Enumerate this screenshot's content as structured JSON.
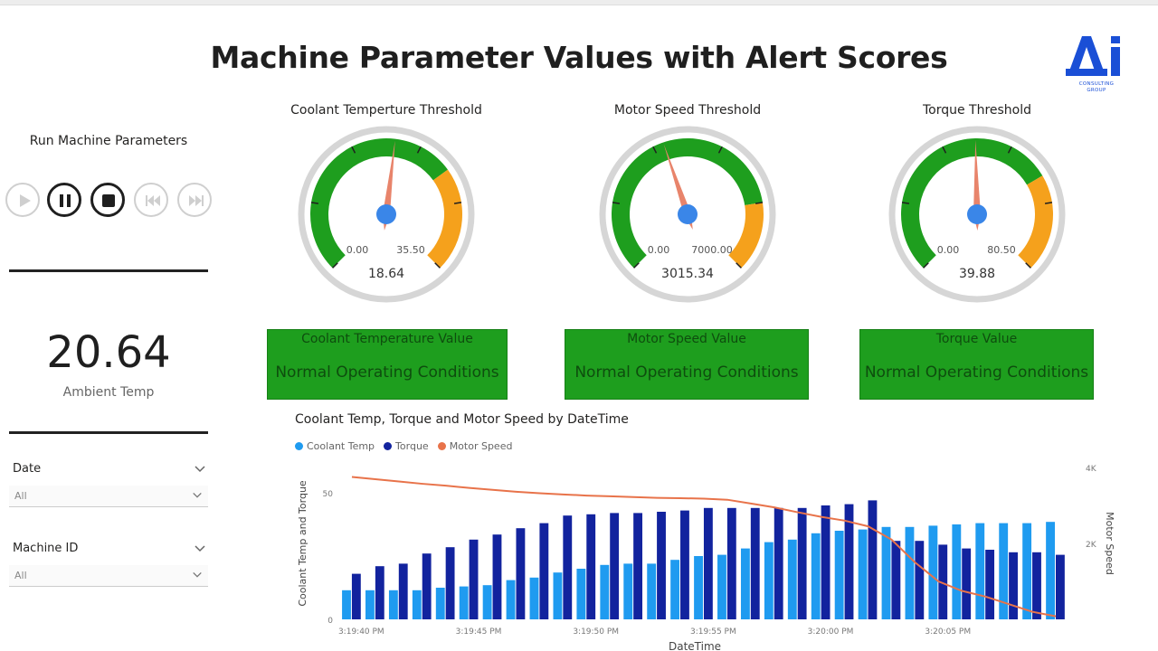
{
  "title": "Machine Parameter Values with Alert Scores",
  "logo": {
    "letters": "Ai",
    "sub1": "CONSULTING",
    "sub2": "GROUP",
    "color": "#1a4fd6"
  },
  "left_panel": {
    "run_label": "Run Machine Parameters",
    "controls": [
      "play-icon",
      "pause-icon",
      "stop-icon",
      "skip-back-icon",
      "skip-forward-icon"
    ],
    "kpi": {
      "value": "20.64",
      "label": "Ambient Temp"
    },
    "slicers": [
      {
        "title": "Date",
        "value": "All"
      },
      {
        "title": "Machine ID",
        "value": "All"
      }
    ]
  },
  "gauges": [
    {
      "title": "Coolant Temperture Threshold",
      "min_label": "0.00",
      "max_label": "35.50",
      "value_label": "18.64",
      "min": 0,
      "max": 35.5,
      "value": 18.64,
      "green_to": 0.7
    },
    {
      "title": "Motor Speed Threshold",
      "min_label": "0.00",
      "max_label": "7000.00",
      "value_label": "3015.34",
      "min": 0,
      "max": 7000,
      "value": 3015.34,
      "green_to": 0.8
    },
    {
      "title": "Torque Threshold",
      "min_label": "0.00",
      "max_label": "80.50",
      "value_label": "39.88",
      "min": 0,
      "max": 80.5,
      "value": 39.88,
      "green_to": 0.72
    }
  ],
  "status_cards": [
    {
      "heading": "Coolant Temperature Value",
      "status": "Normal Operating Conditions"
    },
    {
      "heading": "Motor Speed Value",
      "status": "Normal Operating Conditions"
    },
    {
      "heading": "Torque Value",
      "status": "Normal Operating Conditions"
    }
  ],
  "colors": {
    "green": "#1e9e1e",
    "orange": "#f5a11c",
    "needle": "#e8846b",
    "hub": "#3a86e8",
    "coolant": "#1f9bf0",
    "torque": "#12239e",
    "motor": "#e8734a"
  },
  "chart_data": {
    "type": "bar",
    "title": "Coolant Temp, Torque and Motor Speed by DateTime",
    "xlabel": "DateTime",
    "ylabel": "Coolant Temp and Torque",
    "y2label": "Motor Speed",
    "ylim": [
      0,
      50
    ],
    "y2lim": [
      0,
      4000
    ],
    "yticks": [
      "0",
      "50"
    ],
    "y2ticks": [
      "2K",
      "4K"
    ],
    "xtick_labels": [
      "3:19:40 PM",
      "3:19:45 PM",
      "3:19:50 PM",
      "3:19:55 PM",
      "3:20:00 PM",
      "3:20:05 PM"
    ],
    "legend": [
      "Coolant Temp",
      "Torque",
      "Motor Speed"
    ],
    "series": [
      {
        "name": "Coolant Temp",
        "axis": "left",
        "values": [
          11.5,
          11.5,
          11.5,
          11.5,
          12.5,
          13,
          13.5,
          15.5,
          16.5,
          18.5,
          20,
          21.5,
          22,
          22,
          23.5,
          25,
          25.5,
          28,
          30.5,
          31.5,
          34,
          35,
          35.5,
          36.5,
          36.5,
          37,
          37.5,
          38,
          38,
          38,
          38.5
        ]
      },
      {
        "name": "Torque",
        "axis": "left",
        "values": [
          18,
          21,
          22,
          26,
          28.5,
          31.5,
          33.5,
          36,
          38,
          41,
          41.5,
          42,
          42,
          42.5,
          43,
          44,
          44,
          44,
          44,
          44,
          45,
          45.5,
          47,
          31,
          31,
          29.5,
          28,
          27.5,
          26.5,
          26.5,
          25.5
        ]
      },
      {
        "name": "Motor Speed",
        "axis": "right",
        "type": "line",
        "values": [
          3750,
          3690,
          3630,
          3570,
          3520,
          3460,
          3410,
          3360,
          3320,
          3290,
          3260,
          3240,
          3220,
          3200,
          3190,
          3180,
          3150,
          3050,
          2950,
          2820,
          2700,
          2600,
          2450,
          2100,
          1500,
          1000,
          750,
          600,
          400,
          200,
          80
        ]
      }
    ]
  }
}
